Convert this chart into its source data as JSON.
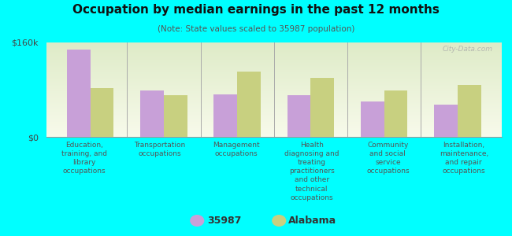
{
  "title": "Occupation by median earnings in the past 12 months",
  "subtitle": "(Note: State values scaled to 35987 population)",
  "background_color": "#00FFFF",
  "plot_bg_top": "#d8e8b8",
  "plot_bg_bottom": "#f0f5e0",
  "categories": [
    "Education,\ntraining, and\nlibrary\noccupations",
    "Transportation\noccupations",
    "Management\noccupations",
    "Health\ndiagnosing and\ntreating\npractitioners\nand other\ntechnical\noccupations",
    "Community\nand social\nservice\noccupations",
    "Installation,\nmaintenance,\nand repair\noccupations"
  ],
  "values_35987": [
    148000,
    78000,
    72000,
    70000,
    60000,
    55000
  ],
  "values_alabama": [
    82000,
    70000,
    110000,
    100000,
    78000,
    88000
  ],
  "color_35987": "#c8a0d8",
  "color_alabama": "#c8d080",
  "ylim": [
    0,
    160000
  ],
  "yticks": [
    0,
    160000
  ],
  "ytick_labels": [
    "$0",
    "$160k"
  ],
  "legend_35987": "35987",
  "legend_alabama": "Alabama",
  "watermark": "City-Data.com"
}
